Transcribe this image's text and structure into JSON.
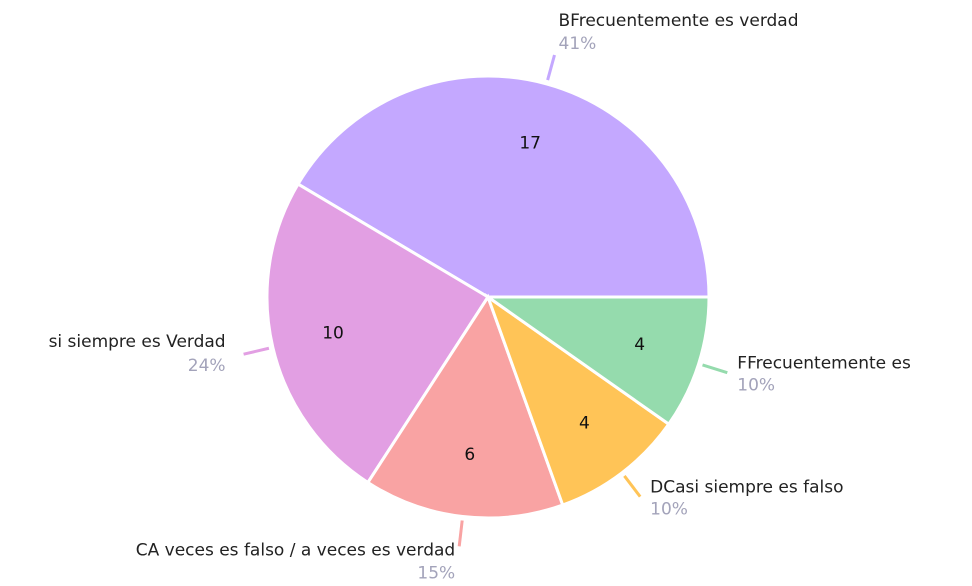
{
  "chart_data": {
    "type": "pie",
    "categories": [
      "BFrecuentemente es verdad",
      "si siempre es Verdad",
      "CA veces es falso / a veces es verdad",
      "DCasi siempre es falso",
      "FFrecuentemente es"
    ],
    "values": [
      17,
      10,
      6,
      4,
      4
    ],
    "percents": [
      41,
      24,
      15,
      10,
      10
    ],
    "percent_labels": [
      "41%",
      "24%",
      "15%",
      "10%",
      "10%"
    ],
    "colors": [
      "#c4a8ff",
      "#e29fe3",
      "#f9a3a3",
      "#ffc457",
      "#95dbad"
    ]
  }
}
